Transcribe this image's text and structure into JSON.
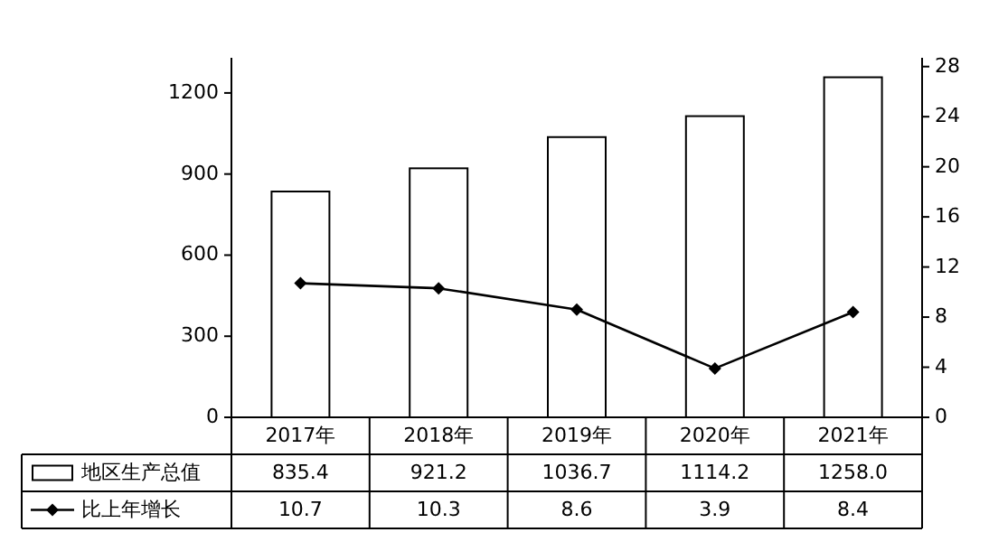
{
  "chart_data": {
    "type": "bar",
    "categories": [
      "2017年",
      "2018年",
      "2019年",
      "2020年",
      "2021年"
    ],
    "series": [
      {
        "name": "地区生产总值",
        "color": "#ffffff",
        "values": [
          835.4,
          921.2,
          1036.7,
          1114.2,
          1258.0
        ],
        "value_labels": [
          "835.4",
          "921.2",
          "1036.7",
          "1114.2",
          "1258.0"
        ]
      },
      {
        "name": "比上年增长",
        "type": "line",
        "axis": "y2",
        "color": "#000000",
        "marker": "diamond",
        "line_style": "solid",
        "values": [
          10.7,
          10.3,
          8.6,
          3.9,
          8.4
        ],
        "value_labels": [
          "10.7",
          "10.3",
          "8.6",
          "3.9",
          "8.4"
        ]
      }
    ],
    "ylim": [
      0,
      1330
    ],
    "yticks": [
      0,
      300,
      600,
      900,
      1200
    ],
    "y2lim": [
      0,
      28.7
    ],
    "y2ticks": [
      0,
      4,
      8,
      12,
      16,
      20,
      24,
      28
    ],
    "legend": "bottom",
    "grid": false
  }
}
